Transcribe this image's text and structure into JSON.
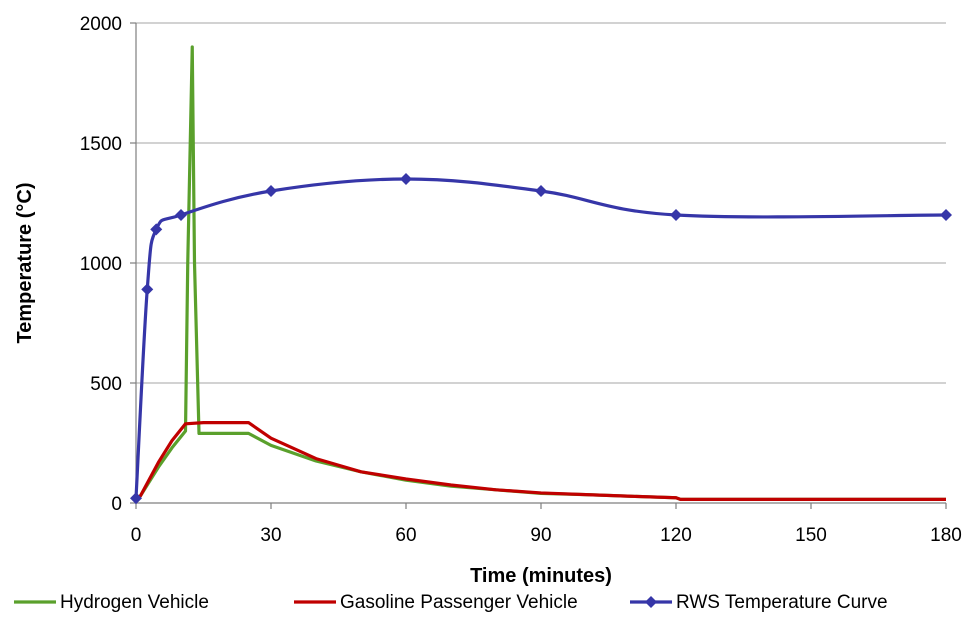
{
  "chart_data": {
    "type": "line",
    "title": "",
    "xlabel": "Time (minutes)",
    "ylabel": "Temperature (°C)",
    "xlim": [
      0,
      180
    ],
    "ylim": [
      0,
      2000
    ],
    "x_ticks": [
      0,
      30,
      60,
      90,
      120,
      150,
      180
    ],
    "y_ticks": [
      0,
      500,
      1000,
      1500,
      2000
    ],
    "grid": "horizontal",
    "legend_position": "bottom",
    "series": [
      {
        "name": "Hydrogen Vehicle",
        "color": "#5aa02c",
        "markers": false,
        "x": [
          0,
          1,
          3,
          5,
          8,
          11,
          11.5,
          12.5,
          13,
          14,
          20,
          25,
          30,
          40,
          50,
          60,
          70,
          80,
          90,
          100,
          110,
          120,
          121,
          150,
          180
        ],
        "y": [
          20,
          30,
          90,
          150,
          230,
          300,
          1000,
          1900,
          1000,
          290,
          290,
          290,
          240,
          175,
          130,
          95,
          70,
          55,
          40,
          35,
          28,
          22,
          15,
          15,
          15
        ]
      },
      {
        "name": "Gasoline Passenger Vehicle",
        "color": "#c00000",
        "markers": false,
        "x": [
          0,
          1,
          3,
          5,
          8,
          11,
          15,
          20,
          25,
          30,
          40,
          50,
          60,
          70,
          80,
          90,
          100,
          110,
          120,
          121,
          150,
          180
        ],
        "y": [
          15,
          30,
          100,
          170,
          260,
          330,
          335,
          335,
          335,
          270,
          185,
          130,
          100,
          75,
          55,
          42,
          35,
          28,
          22,
          15,
          15,
          15
        ]
      },
      {
        "name": "RWS Temperature Curve",
        "color": "#3636a8",
        "markers": true,
        "x": [
          0,
          2.5,
          4.5,
          10,
          30,
          60,
          90,
          120,
          180
        ],
        "y": [
          20,
          890,
          1140,
          1200,
          1300,
          1350,
          1300,
          1200,
          1200
        ]
      }
    ]
  }
}
